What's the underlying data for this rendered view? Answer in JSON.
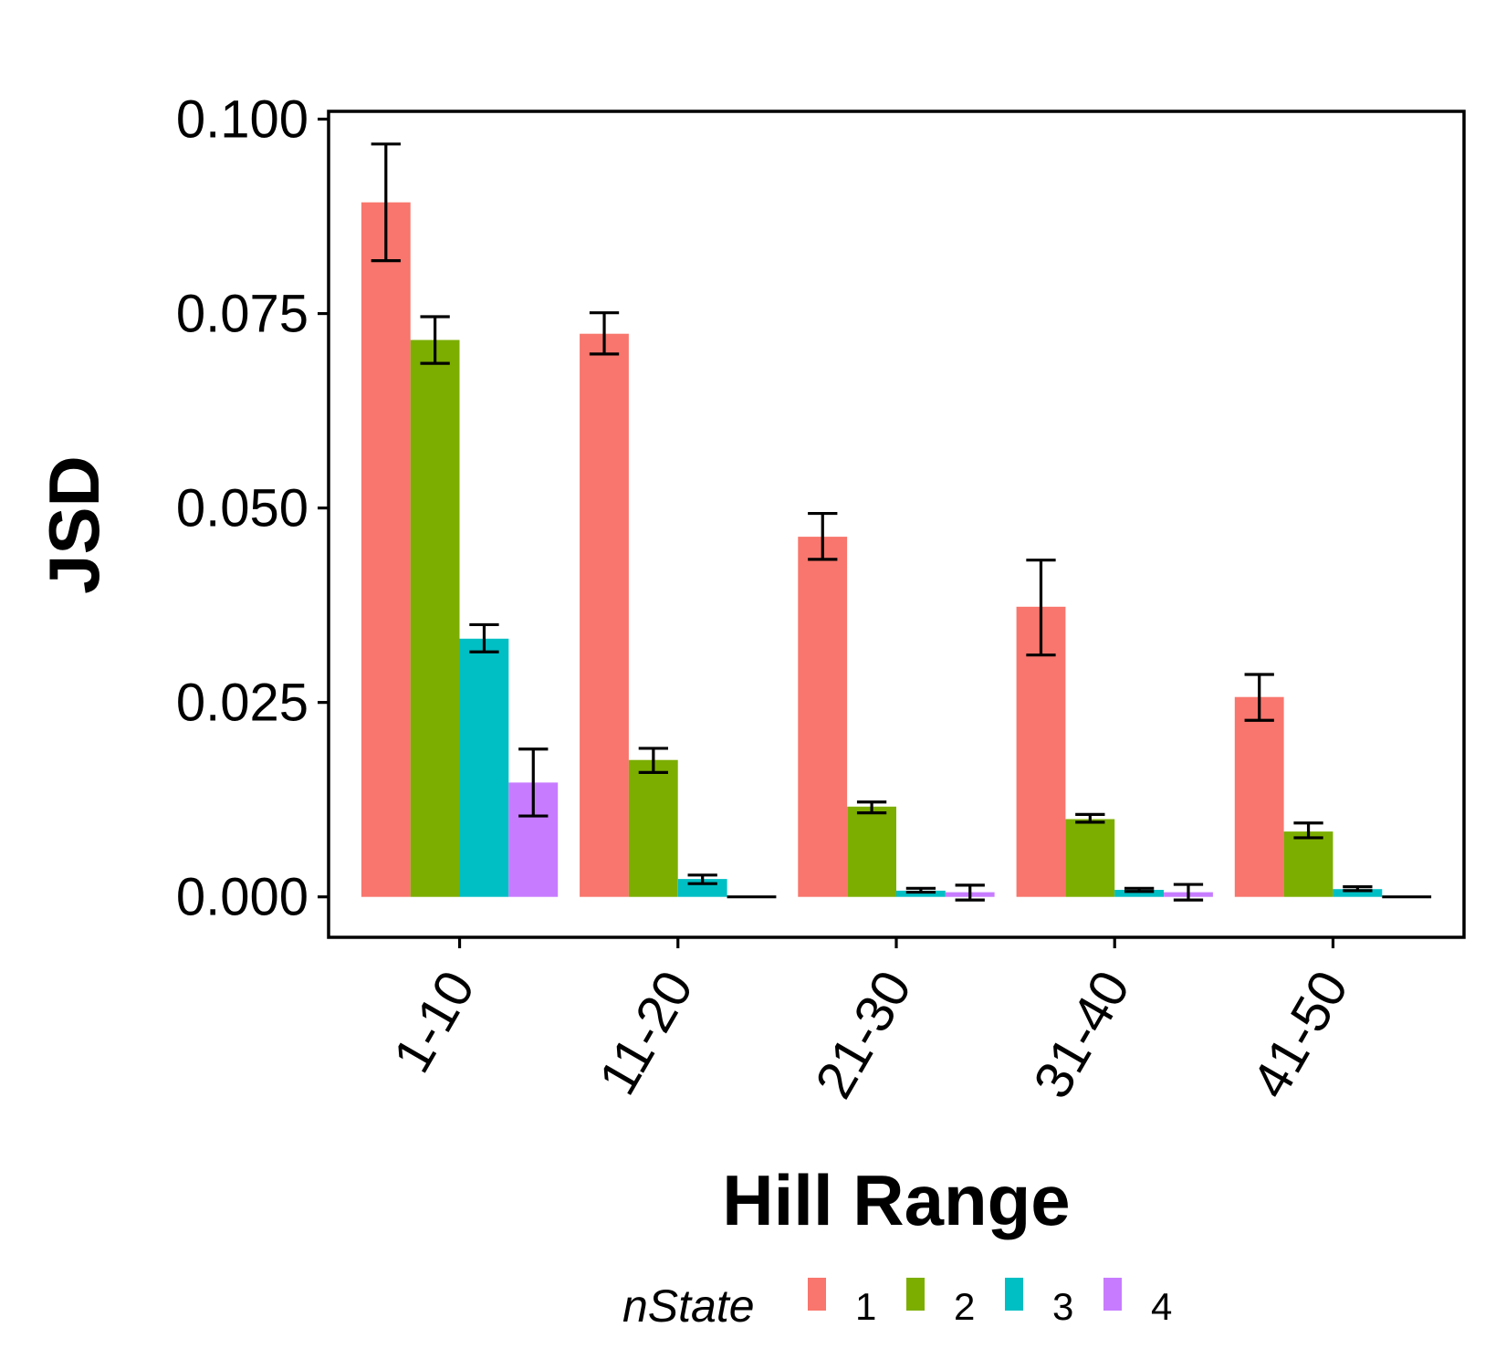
{
  "chart_data": {
    "type": "bar",
    "title": "",
    "xlabel": "Hill Range",
    "ylabel": "JSD",
    "ylim": [
      -0.0052,
      0.101
    ],
    "yticks": [
      "0.000",
      "0.025",
      "0.050",
      "0.075",
      "0.100"
    ],
    "ytick_values": [
      0,
      0.025,
      0.05,
      0.075,
      0.1
    ],
    "categories": [
      "1-10",
      "11-20",
      "21-30",
      "31-40",
      "41-50"
    ],
    "grid": false,
    "legend": {
      "title": "nState",
      "position": "bottom"
    },
    "series": [
      {
        "name": "1",
        "color": "#F8766D",
        "values": [
          0.0893,
          0.0724,
          0.0463,
          0.0373,
          0.0257
        ],
        "err_low": [
          0.0818,
          0.0698,
          0.0434,
          0.0311,
          0.0227
        ],
        "err_high": [
          0.0968,
          0.0751,
          0.0493,
          0.0433,
          0.0286
        ]
      },
      {
        "name": "2",
        "color": "#7CAE00",
        "values": [
          0.0716,
          0.0176,
          0.0116,
          0.01,
          0.0084
        ],
        "err_low": [
          0.0686,
          0.016,
          0.0108,
          0.0096,
          0.0076
        ],
        "err_high": [
          0.0746,
          0.0191,
          0.0122,
          0.0106,
          0.0095
        ]
      },
      {
        "name": "3",
        "color": "#00BFC4",
        "values": [
          0.0332,
          0.0023,
          0.0008,
          0.0009,
          0.001
        ],
        "err_low": [
          0.0315,
          0.0017,
          0.0006,
          0.0007,
          0.0008
        ],
        "err_high": [
          0.035,
          0.0028,
          0.0011,
          0.0011,
          0.0013
        ]
      },
      {
        "name": "4",
        "color": "#C77CFF",
        "values": [
          0.0147,
          0.0,
          0.0006,
          0.0006,
          0.0
        ],
        "err_low": [
          0.0104,
          0.0,
          -0.0004,
          -0.0004,
          0.0
        ],
        "err_high": [
          0.019,
          0.0,
          0.0015,
          0.0016,
          0.0
        ]
      }
    ]
  }
}
